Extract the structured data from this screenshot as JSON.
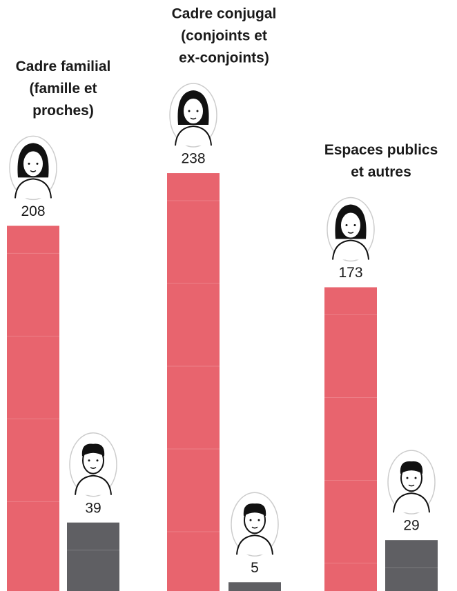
{
  "chart_data": {
    "type": "bar",
    "categories": [
      [
        "Cadre familial",
        "(famille et",
        "proches)"
      ],
      [
        "Cadre conjugal",
        "(conjoints et",
        "ex-conjoints)"
      ],
      [
        "Espaces publics",
        "et autres"
      ]
    ],
    "series": [
      {
        "color": "#e8646e",
        "values": [
          208,
          238,
          173
        ]
      },
      {
        "color": "#5f5f63",
        "values": [
          39,
          5,
          29
        ]
      }
    ]
  }
}
